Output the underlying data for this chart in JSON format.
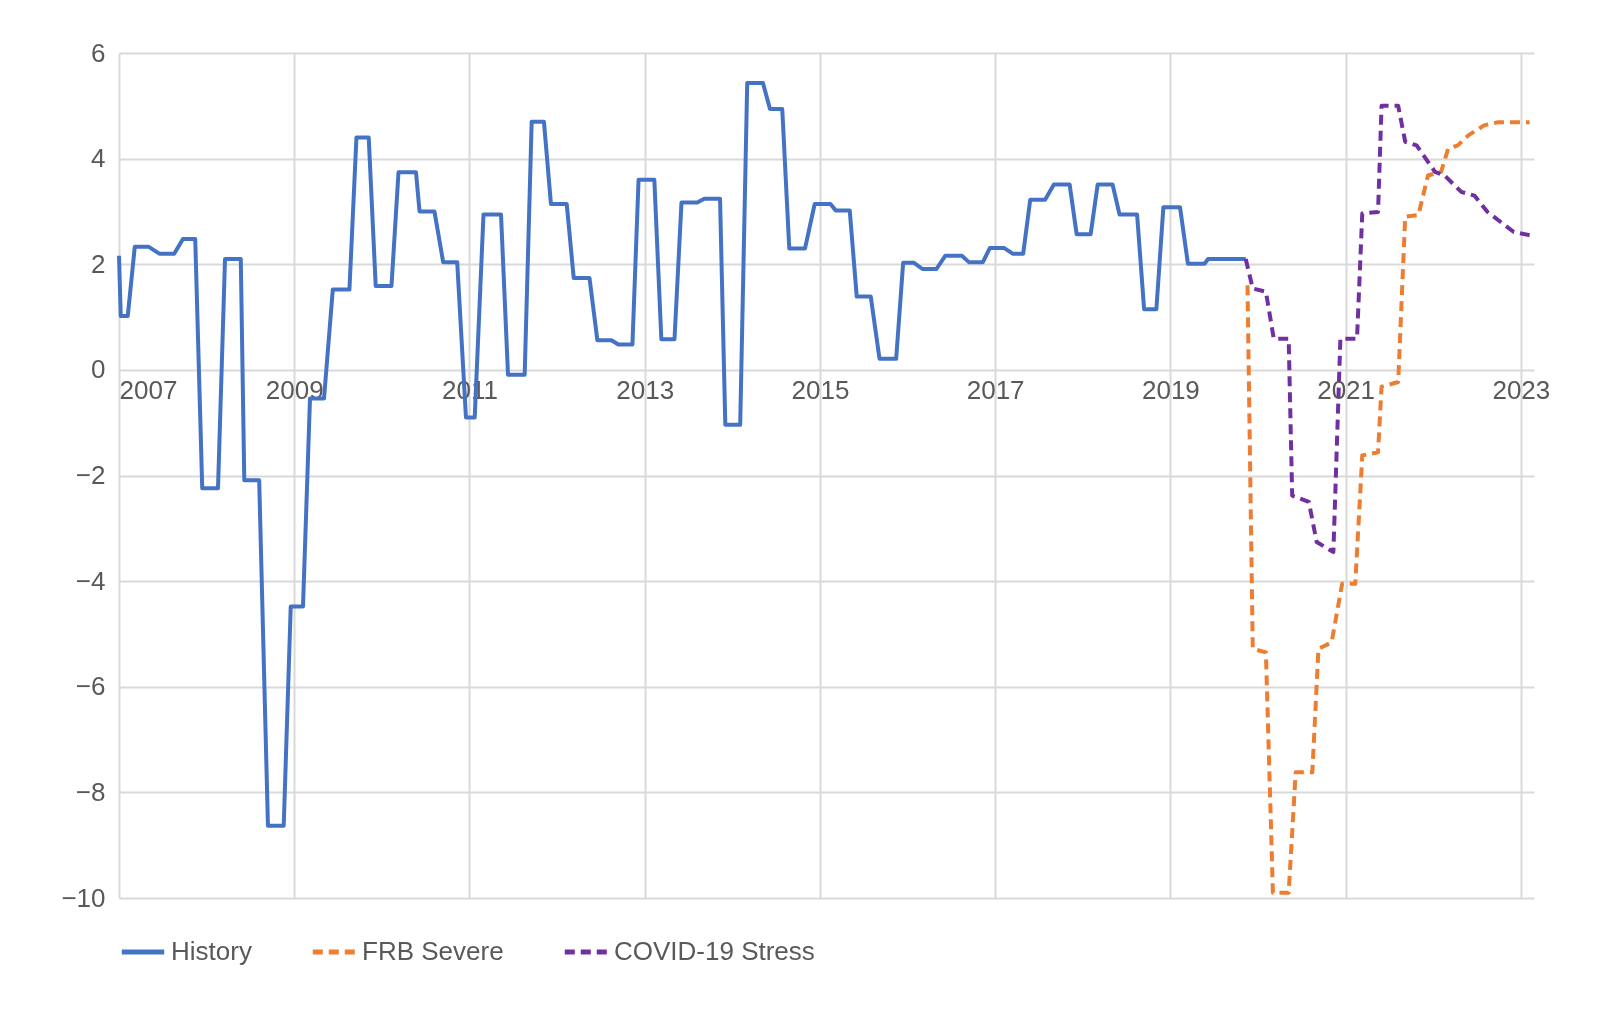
{
  "chart_data": {
    "type": "line",
    "xlim": [
      2007,
      2023.15
    ],
    "xticks": [
      2007,
      2009,
      2011,
      2013,
      2015,
      2017,
      2019,
      2021,
      2023
    ],
    "ylim": [
      -10,
      6
    ],
    "yticks": [
      -10,
      -8,
      -6,
      -4,
      -2,
      0,
      2,
      4,
      6
    ],
    "grid": true,
    "legend": "bottom",
    "series": [
      {
        "name": "History",
        "color": "#4472c4",
        "line_style": "solid",
        "x": [
          2007.0,
          2007.02,
          2007.1,
          2007.18,
          2007.34,
          2007.46,
          2007.63,
          2007.73,
          2007.87,
          2007.95,
          2008.13,
          2008.21,
          2008.39,
          2008.43,
          2008.6,
          2008.7,
          2008.88,
          2008.96,
          2009.1,
          2009.18,
          2009.34,
          2009.44,
          2009.63,
          2009.71,
          2009.85,
          2009.93,
          2010.11,
          2010.19,
          2010.39,
          2010.43,
          2010.6,
          2010.7,
          2010.86,
          2010.96,
          2011.06,
          2011.16,
          2011.36,
          2011.44,
          2011.63,
          2011.71,
          2011.85,
          2011.93,
          2012.11,
          2012.19,
          2012.37,
          2012.46,
          2012.62,
          2012.7,
          2012.86,
          2012.93,
          2013.11,
          2013.19,
          2013.34,
          2013.42,
          2013.6,
          2013.68,
          2013.86,
          2013.92,
          2014.09,
          2014.17,
          2014.35,
          2014.43,
          2014.57,
          2014.65,
          2014.83,
          2014.94,
          2015.12,
          2015.18,
          2015.34,
          2015.42,
          2015.58,
          2015.68,
          2015.87,
          2015.95,
          2016.07,
          2016.17,
          2016.33,
          2016.43,
          2016.62,
          2016.7,
          2016.86,
          2016.94,
          2017.1,
          2017.2,
          2017.32,
          2017.4,
          2017.57,
          2017.67,
          2017.85,
          2017.93,
          2018.09,
          2018.17,
          2018.34,
          2018.42,
          2018.62,
          2018.7,
          2018.84,
          2018.92,
          2019.11,
          2019.2,
          2019.39,
          2019.43,
          2019.86
        ],
        "values": [
          2.16,
          1.02,
          1.02,
          2.33,
          2.33,
          2.2,
          2.2,
          2.48,
          2.48,
          -2.24,
          -2.24,
          2.1,
          2.1,
          -2.09,
          -2.09,
          -8.63,
          -8.63,
          -4.48,
          -4.48,
          -0.54,
          -0.54,
          1.52,
          1.52,
          4.4,
          4.4,
          1.59,
          1.59,
          3.74,
          3.74,
          3.0,
          3.0,
          2.04,
          2.04,
          -0.9,
          -0.9,
          2.94,
          2.94,
          -0.09,
          -0.09,
          4.7,
          4.7,
          3.14,
          3.14,
          1.74,
          1.74,
          0.56,
          0.56,
          0.48,
          0.48,
          3.6,
          3.6,
          0.58,
          0.58,
          3.17,
          3.17,
          3.24,
          3.24,
          -1.04,
          -1.04,
          5.43,
          5.43,
          4.94,
          4.94,
          2.3,
          2.3,
          3.14,
          3.14,
          3.02,
          3.02,
          1.39,
          1.39,
          0.21,
          0.21,
          2.03,
          2.03,
          1.91,
          1.91,
          2.16,
          2.16,
          2.04,
          2.04,
          2.31,
          2.31,
          2.2,
          2.2,
          3.22,
          3.22,
          3.51,
          3.51,
          2.57,
          2.57,
          3.51,
          3.51,
          2.94,
          2.94,
          1.15,
          1.15,
          3.08,
          3.08,
          2.01,
          2.01,
          2.1,
          2.1
        ]
      },
      {
        "name": "FRB Severe",
        "color": "#ed7d31",
        "line_style": "dashed",
        "x": [
          2019.88,
          2019.94,
          2020.09,
          2020.17,
          2020.35,
          2020.43,
          2020.62,
          2020.69,
          2020.84,
          2020.96,
          2021.11,
          2021.19,
          2021.37,
          2021.41,
          2021.6,
          2021.68,
          2021.83,
          2021.94,
          2022.09,
          2022.17,
          2022.28,
          2022.4,
          2022.58,
          2022.74,
          2023.1
        ],
        "values": [
          1.6,
          -5.28,
          -5.35,
          -9.9,
          -9.9,
          -7.62,
          -7.62,
          -5.28,
          -5.16,
          -4.05,
          -4.05,
          -1.62,
          -1.56,
          -0.32,
          -0.23,
          2.9,
          2.93,
          3.68,
          3.75,
          4.19,
          4.25,
          4.44,
          4.63,
          4.69,
          4.69
        ]
      },
      {
        "name": "COVID-19 Stress",
        "color": "#7030a0",
        "line_style": "dashed",
        "x": [
          2019.86,
          2019.94,
          2020.09,
          2020.18,
          2020.35,
          2020.39,
          2020.58,
          2020.67,
          2020.86,
          2020.94,
          2021.13,
          2021.19,
          2021.37,
          2021.41,
          2021.6,
          2021.68,
          2021.81,
          2022.02,
          2022.13,
          2022.32,
          2022.47,
          2022.62,
          2022.92,
          2023.1
        ],
        "values": [
          2.1,
          1.54,
          1.48,
          0.59,
          0.59,
          -2.38,
          -2.5,
          -3.26,
          -3.45,
          0.59,
          0.59,
          2.96,
          2.99,
          5.0,
          5.0,
          4.32,
          4.25,
          3.75,
          3.68,
          3.37,
          3.3,
          2.99,
          2.61,
          2.55
        ]
      }
    ]
  }
}
